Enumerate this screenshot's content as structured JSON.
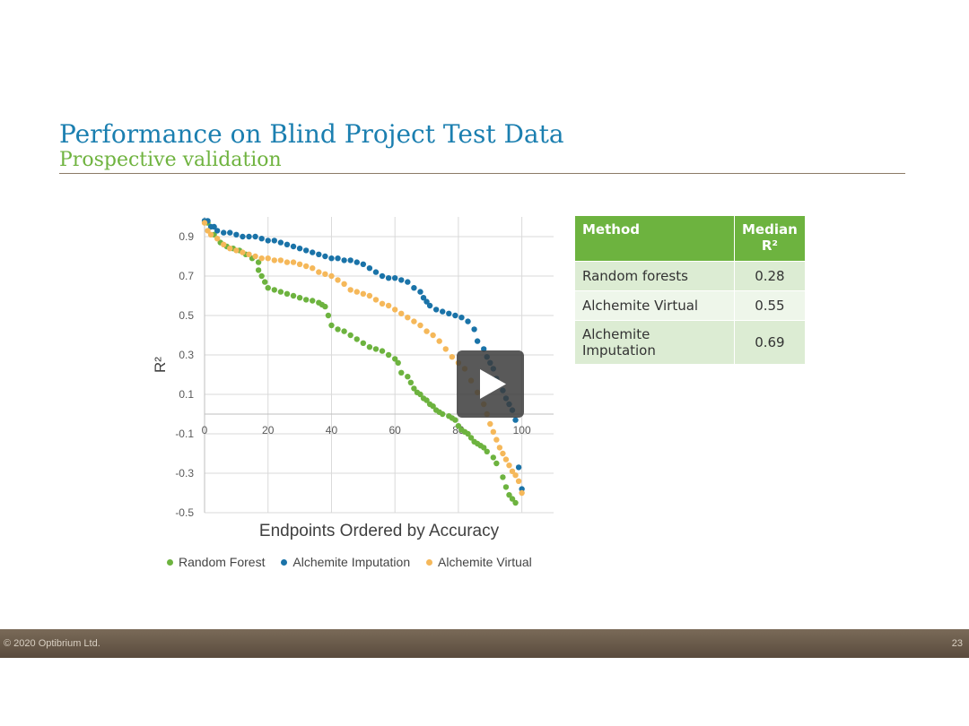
{
  "slide": {
    "title": "Performance on Blind Project Test Data",
    "subtitle": "Prospective validation"
  },
  "table": {
    "header": {
      "method": "Method",
      "median_r2": "Median R²"
    },
    "rows": [
      {
        "method": "Random forests",
        "value": "0.28"
      },
      {
        "method": "Alchemite Virtual",
        "value": "0.55"
      },
      {
        "method": "Alchemite Imputation",
        "value": "0.69"
      }
    ]
  },
  "footer": {
    "copyright": "© 2020 Optibrium Ltd.",
    "page": "23"
  },
  "colors": {
    "random_forest": "#6db33f",
    "alchemite_imputation": "#1a73a8",
    "alchemite_virtual": "#f5b85a"
  },
  "icons": {
    "play": "play-icon"
  },
  "chart_data": {
    "type": "scatter",
    "xlabel": "Endpoints Ordered by Accuracy",
    "ylabel": "R²",
    "xlim": [
      0,
      110
    ],
    "ylim": [
      -0.5,
      1.0
    ],
    "x_ticks": [
      0,
      20,
      40,
      60,
      80,
      100
    ],
    "y_ticks": [
      0.9,
      0.7,
      0.5,
      0.3,
      0.1,
      -0.1,
      -0.3,
      -0.5
    ],
    "grid": true,
    "legend": "bottom",
    "series": [
      {
        "name": "Random Forest",
        "color": "#6db33f",
        "points": [
          [
            1,
            0.97
          ],
          [
            3,
            0.91
          ],
          [
            5,
            0.87
          ],
          [
            7,
            0.85
          ],
          [
            9,
            0.84
          ],
          [
            11,
            0.83
          ],
          [
            13,
            0.81
          ],
          [
            15,
            0.79
          ],
          [
            17,
            0.77
          ],
          [
            17,
            0.73
          ],
          [
            18,
            0.7
          ],
          [
            19,
            0.67
          ],
          [
            20,
            0.64
          ],
          [
            22,
            0.63
          ],
          [
            24,
            0.62
          ],
          [
            26,
            0.61
          ],
          [
            28,
            0.6
          ],
          [
            30,
            0.59
          ],
          [
            32,
            0.58
          ],
          [
            34,
            0.575
          ],
          [
            36,
            0.565
          ],
          [
            37,
            0.555
          ],
          [
            38,
            0.545
          ],
          [
            39,
            0.5
          ],
          [
            40,
            0.45
          ],
          [
            42,
            0.43
          ],
          [
            44,
            0.42
          ],
          [
            46,
            0.4
          ],
          [
            48,
            0.38
          ],
          [
            50,
            0.36
          ],
          [
            52,
            0.34
          ],
          [
            54,
            0.33
          ],
          [
            56,
            0.32
          ],
          [
            58,
            0.3
          ],
          [
            60,
            0.28
          ],
          [
            61,
            0.26
          ],
          [
            62,
            0.21
          ],
          [
            64,
            0.19
          ],
          [
            65,
            0.16
          ],
          [
            66,
            0.13
          ],
          [
            67,
            0.11
          ],
          [
            68,
            0.1
          ],
          [
            69,
            0.08
          ],
          [
            70,
            0.07
          ],
          [
            71,
            0.05
          ],
          [
            72,
            0.04
          ],
          [
            73,
            0.02
          ],
          [
            74,
            0.01
          ],
          [
            75,
            0.0
          ],
          [
            77,
            -0.01
          ],
          [
            78,
            -0.02
          ],
          [
            79,
            -0.03
          ],
          [
            80,
            -0.06
          ],
          [
            81,
            -0.08
          ],
          [
            82,
            -0.09
          ],
          [
            83,
            -0.1
          ],
          [
            84,
            -0.12
          ],
          [
            85,
            -0.14
          ],
          [
            86,
            -0.15
          ],
          [
            87,
            -0.16
          ],
          [
            88,
            -0.17
          ],
          [
            89,
            -0.19
          ],
          [
            91,
            -0.22
          ],
          [
            92,
            -0.25
          ],
          [
            94,
            -0.32
          ],
          [
            95,
            -0.37
          ],
          [
            96,
            -0.41
          ],
          [
            97,
            -0.43
          ],
          [
            98,
            -0.45
          ]
        ]
      },
      {
        "name": "Alchemite Imputation",
        "color": "#1a73a8",
        "points": [
          [
            0,
            0.98
          ],
          [
            1,
            0.98
          ],
          [
            2,
            0.95
          ],
          [
            3,
            0.95
          ],
          [
            4,
            0.93
          ],
          [
            6,
            0.92
          ],
          [
            8,
            0.92
          ],
          [
            10,
            0.91
          ],
          [
            12,
            0.9
          ],
          [
            14,
            0.9
          ],
          [
            16,
            0.9
          ],
          [
            18,
            0.89
          ],
          [
            20,
            0.88
          ],
          [
            22,
            0.88
          ],
          [
            24,
            0.87
          ],
          [
            26,
            0.86
          ],
          [
            28,
            0.85
          ],
          [
            30,
            0.84
          ],
          [
            32,
            0.83
          ],
          [
            34,
            0.82
          ],
          [
            36,
            0.81
          ],
          [
            38,
            0.8
          ],
          [
            40,
            0.79
          ],
          [
            42,
            0.79
          ],
          [
            44,
            0.78
          ],
          [
            46,
            0.78
          ],
          [
            48,
            0.77
          ],
          [
            50,
            0.76
          ],
          [
            52,
            0.74
          ],
          [
            54,
            0.72
          ],
          [
            56,
            0.7
          ],
          [
            58,
            0.69
          ],
          [
            60,
            0.69
          ],
          [
            62,
            0.68
          ],
          [
            64,
            0.67
          ],
          [
            66,
            0.64
          ],
          [
            68,
            0.62
          ],
          [
            69,
            0.59
          ],
          [
            70,
            0.57
          ],
          [
            71,
            0.55
          ],
          [
            73,
            0.53
          ],
          [
            75,
            0.52
          ],
          [
            77,
            0.51
          ],
          [
            79,
            0.5
          ],
          [
            81,
            0.49
          ],
          [
            83,
            0.47
          ],
          [
            85,
            0.43
          ],
          [
            86,
            0.37
          ],
          [
            88,
            0.33
          ],
          [
            89,
            0.29
          ],
          [
            90,
            0.26
          ],
          [
            91,
            0.23
          ],
          [
            92,
            0.18
          ],
          [
            93,
            0.15
          ],
          [
            94,
            0.12
          ],
          [
            95,
            0.08
          ],
          [
            96,
            0.05
          ],
          [
            97,
            0.02
          ],
          [
            98,
            -0.03
          ],
          [
            99,
            -0.27
          ],
          [
            100,
            -0.38
          ]
        ]
      },
      {
        "name": "Alchemite Virtual",
        "color": "#f5b85a",
        "points": [
          [
            0,
            0.97
          ],
          [
            1,
            0.93
          ],
          [
            2,
            0.91
          ],
          [
            4,
            0.89
          ],
          [
            6,
            0.86
          ],
          [
            8,
            0.84
          ],
          [
            10,
            0.83
          ],
          [
            12,
            0.82
          ],
          [
            14,
            0.81
          ],
          [
            16,
            0.8
          ],
          [
            18,
            0.79
          ],
          [
            20,
            0.79
          ],
          [
            22,
            0.78
          ],
          [
            24,
            0.78
          ],
          [
            26,
            0.77
          ],
          [
            28,
            0.77
          ],
          [
            30,
            0.76
          ],
          [
            32,
            0.75
          ],
          [
            34,
            0.74
          ],
          [
            36,
            0.72
          ],
          [
            38,
            0.71
          ],
          [
            40,
            0.7
          ],
          [
            42,
            0.68
          ],
          [
            44,
            0.66
          ],
          [
            46,
            0.63
          ],
          [
            48,
            0.62
          ],
          [
            50,
            0.61
          ],
          [
            52,
            0.6
          ],
          [
            54,
            0.58
          ],
          [
            56,
            0.56
          ],
          [
            58,
            0.55
          ],
          [
            60,
            0.53
          ],
          [
            62,
            0.51
          ],
          [
            64,
            0.49
          ],
          [
            66,
            0.47
          ],
          [
            68,
            0.45
          ],
          [
            70,
            0.42
          ],
          [
            72,
            0.4
          ],
          [
            74,
            0.37
          ],
          [
            76,
            0.33
          ],
          [
            78,
            0.29
          ],
          [
            80,
            0.26
          ],
          [
            82,
            0.23
          ],
          [
            84,
            0.17
          ],
          [
            86,
            0.11
          ],
          [
            88,
            0.05
          ],
          [
            89,
            0.0
          ],
          [
            90,
            -0.05
          ],
          [
            91,
            -0.09
          ],
          [
            92,
            -0.13
          ],
          [
            93,
            -0.17
          ],
          [
            94,
            -0.2
          ],
          [
            95,
            -0.23
          ],
          [
            96,
            -0.26
          ],
          [
            97,
            -0.29
          ],
          [
            98,
            -0.31
          ],
          [
            99,
            -0.34
          ],
          [
            100,
            -0.4
          ]
        ]
      }
    ]
  }
}
